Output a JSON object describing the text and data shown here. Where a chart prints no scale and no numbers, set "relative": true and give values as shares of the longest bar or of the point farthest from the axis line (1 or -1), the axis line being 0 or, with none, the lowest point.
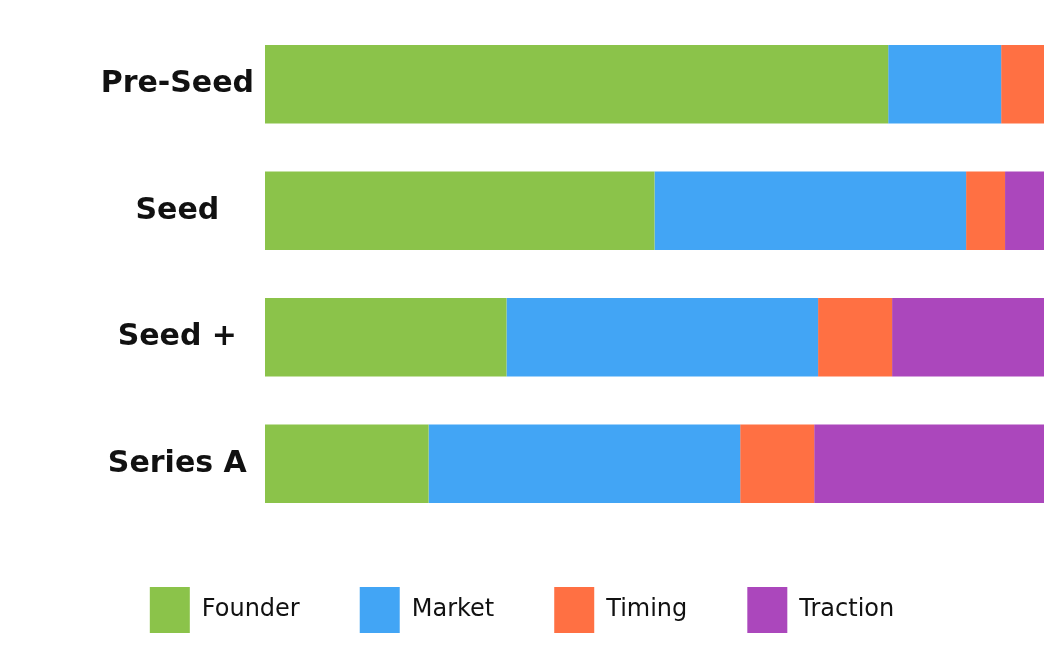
{
  "chart_data": {
    "type": "bar",
    "orientation": "horizontal",
    "stacked": true,
    "relative": true,
    "legend": "bottom",
    "categories": [
      "Pre-Seed",
      "Seed",
      "Seed +",
      "Series A"
    ],
    "series": [
      {
        "name": "Founder",
        "color": "#8bc34a",
        "values": [
          0.8,
          0.5,
          0.31,
          0.21
        ]
      },
      {
        "name": "Market",
        "color": "#42a5f5",
        "values": [
          0.145,
          0.4,
          0.4,
          0.4
        ]
      },
      {
        "name": "Timing",
        "color": "#ff7043",
        "values": [
          0.055,
          0.05,
          0.095,
          0.095
        ]
      },
      {
        "name": "Traction",
        "color": "#ab47bc",
        "values": [
          0,
          0.05,
          0.195,
          0.295
        ]
      }
    ]
  }
}
